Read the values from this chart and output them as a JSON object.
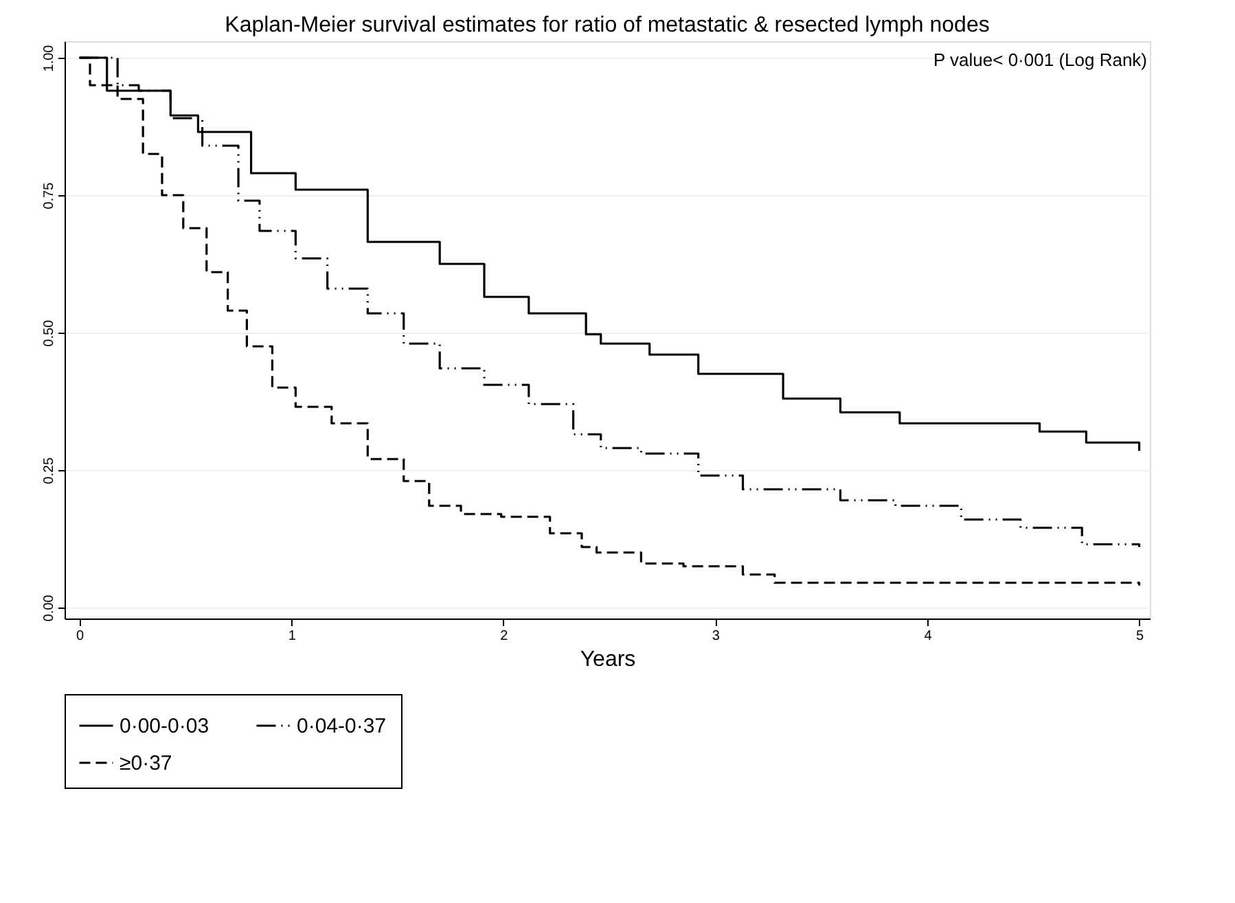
{
  "chart_data": {
    "type": "step",
    "title": "Kaplan-Meier survival estimates for ratio of metastatic & resected lymph nodes",
    "xlabel": "Years",
    "annotations": [
      "P value< 0·001 (Log Rank)"
    ],
    "xlim": [
      -0.07,
      5.05
    ],
    "xticks": [
      0,
      1,
      2,
      3,
      4,
      5
    ],
    "ylim": [
      -0.02,
      1.03
    ],
    "yticks": [
      {
        "value": 0,
        "label": "0.00"
      },
      {
        "value": 0.25,
        "label": "0.25"
      },
      {
        "value": 0.5,
        "label": "0.50"
      },
      {
        "value": 0.75,
        "label": "0.75"
      },
      {
        "value": 1,
        "label": "1.00"
      }
    ],
    "grid": "y",
    "legend": "bottom",
    "marker": "none",
    "series": [
      {
        "name": "0·00-0·03",
        "color": "#000000",
        "line_style": "solid",
        "x": [
          0,
          0.13,
          0.43,
          0.56,
          0.81,
          1.02,
          1.36,
          1.7,
          1.91,
          2.12,
          2.39,
          2.46,
          2.69,
          2.92,
          3.32,
          3.59,
          3.87,
          4.53,
          4.75,
          5.0
        ],
        "values": [
          1.0,
          0.94,
          0.895,
          0.865,
          0.79,
          0.76,
          0.665,
          0.625,
          0.565,
          0.535,
          0.497,
          0.48,
          0.46,
          0.425,
          0.38,
          0.355,
          0.335,
          0.32,
          0.3,
          0.285
        ]
      },
      {
        "name": "0·04-0·37",
        "color": "#000000",
        "line_style": "dashdot",
        "x": [
          0,
          0.18,
          0.28,
          0.43,
          0.58,
          0.75,
          0.85,
          1.02,
          1.17,
          1.36,
          1.53,
          1.7,
          1.91,
          2.12,
          2.33,
          2.46,
          2.65,
          2.92,
          3.13,
          3.59,
          3.85,
          4.16,
          4.44,
          4.73,
          5.0
        ],
        "values": [
          1.0,
          0.95,
          0.94,
          0.89,
          0.84,
          0.74,
          0.685,
          0.635,
          0.58,
          0.535,
          0.48,
          0.435,
          0.405,
          0.37,
          0.315,
          0.29,
          0.28,
          0.24,
          0.215,
          0.195,
          0.185,
          0.16,
          0.145,
          0.115,
          0.11
        ]
      },
      {
        "name": "≥0·37",
        "color": "#000000",
        "line_style": "dashed",
        "x": [
          0,
          0.05,
          0.18,
          0.3,
          0.39,
          0.49,
          0.6,
          0.7,
          0.79,
          0.91,
          1.02,
          1.19,
          1.36,
          1.53,
          1.65,
          1.8,
          1.99,
          2.22,
          2.37,
          2.44,
          2.65,
          2.85,
          3.13,
          3.28,
          5.0
        ],
        "values": [
          1.0,
          0.95,
          0.925,
          0.825,
          0.75,
          0.69,
          0.61,
          0.54,
          0.475,
          0.4,
          0.365,
          0.335,
          0.27,
          0.23,
          0.185,
          0.17,
          0.165,
          0.135,
          0.11,
          0.1,
          0.08,
          0.075,
          0.06,
          0.045,
          0.04
        ]
      }
    ]
  }
}
